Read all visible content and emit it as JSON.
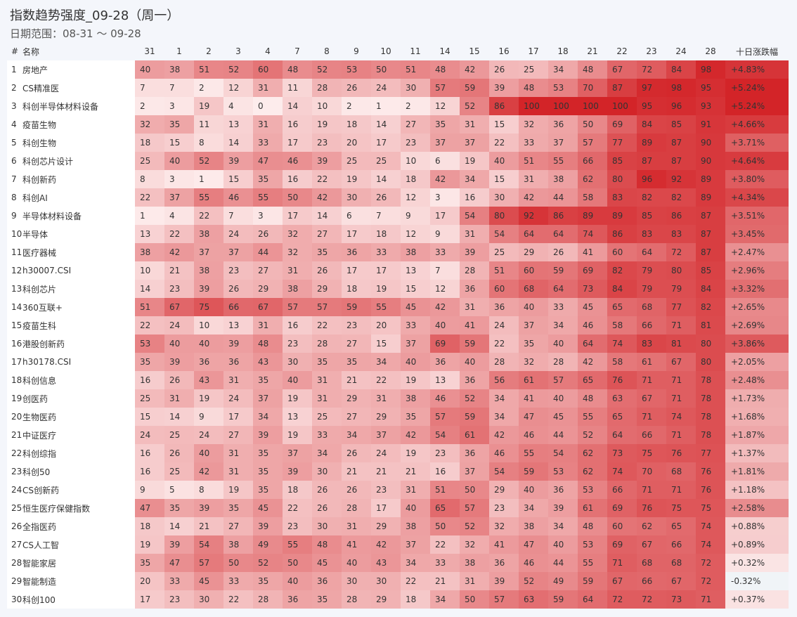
{
  "title": "指数趋势强度_09-28（周一）",
  "subtitle": "日期范围：08-31 ～ 09-28",
  "chart_data": {
    "type": "heatmap",
    "columns": [
      "#",
      "名称",
      "31",
      "1",
      "2",
      "3",
      "4",
      "7",
      "8",
      "9",
      "10",
      "11",
      "14",
      "15",
      "16",
      "17",
      "18",
      "21",
      "22",
      "23",
      "24",
      "28",
      "十日涨跌幅"
    ],
    "rows": [
      {
        "n": "1",
        "name": "房地产",
        "values": [
          40,
          38,
          51,
          52,
          60,
          48,
          52,
          53,
          50,
          51,
          48,
          42,
          26,
          25,
          34,
          48,
          67,
          72,
          84,
          98
        ],
        "chg": "+4.83%",
        "chg_value": 4.83
      },
      {
        "n": "2",
        "name": "CS精准医",
        "values": [
          7,
          7,
          2,
          12,
          31,
          11,
          28,
          26,
          24,
          30,
          57,
          59,
          39,
          48,
          53,
          70,
          87,
          97,
          98,
          95
        ],
        "chg": "+5.24%",
        "chg_value": 5.24
      },
      {
        "n": "3",
        "name": "科创半导体材料设备",
        "values": [
          2,
          3,
          19,
          4,
          0,
          14,
          10,
          2,
          1,
          2,
          12,
          52,
          86,
          100,
          100,
          100,
          100,
          95,
          96,
          93
        ],
        "chg": "+5.24%",
        "chg_value": 5.24
      },
      {
        "n": "4",
        "name": "疫苗生物",
        "values": [
          32,
          35,
          11,
          13,
          31,
          16,
          19,
          18,
          14,
          27,
          35,
          31,
          15,
          32,
          36,
          50,
          69,
          84,
          85,
          91
        ],
        "chg": "+4.66%",
        "chg_value": 4.66
      },
      {
        "n": "5",
        "name": "科创生物",
        "values": [
          18,
          15,
          8,
          14,
          33,
          17,
          23,
          20,
          17,
          23,
          37,
          37,
          22,
          33,
          37,
          57,
          77,
          89,
          87,
          90
        ],
        "chg": "+3.71%",
        "chg_value": 3.71
      },
      {
        "n": "6",
        "name": "科创芯片设计",
        "values": [
          25,
          40,
          52,
          39,
          47,
          46,
          39,
          25,
          25,
          10,
          6,
          19,
          40,
          51,
          55,
          66,
          85,
          87,
          87,
          90
        ],
        "chg": "+4.64%",
        "chg_value": 4.64
      },
      {
        "n": "7",
        "name": "科创新药",
        "values": [
          8,
          3,
          1,
          15,
          35,
          16,
          22,
          19,
          14,
          18,
          42,
          34,
          15,
          31,
          38,
          62,
          80,
          96,
          92,
          89
        ],
        "chg": "+3.80%",
        "chg_value": 3.8
      },
      {
        "n": "8",
        "name": "科创AI",
        "values": [
          22,
          37,
          55,
          46,
          55,
          50,
          42,
          30,
          26,
          12,
          3,
          16,
          30,
          42,
          44,
          58,
          83,
          82,
          82,
          89
        ],
        "chg": "+4.34%",
        "chg_value": 4.34
      },
      {
        "n": "9",
        "name": "半导体材料设备",
        "values": [
          1,
          4,
          22,
          7,
          3,
          17,
          14,
          6,
          7,
          9,
          17,
          54,
          80,
          92,
          86,
          89,
          89,
          85,
          86,
          87
        ],
        "chg": "+3.51%",
        "chg_value": 3.51
      },
      {
        "n": "10",
        "name": "半导体",
        "values": [
          13,
          22,
          38,
          24,
          26,
          32,
          27,
          17,
          18,
          12,
          9,
          31,
          54,
          64,
          64,
          74,
          86,
          83,
          83,
          87
        ],
        "chg": "+3.45%",
        "chg_value": 3.45
      },
      {
        "n": "11",
        "name": "医疗器械",
        "values": [
          38,
          42,
          37,
          37,
          44,
          32,
          35,
          36,
          33,
          38,
          33,
          39,
          25,
          29,
          26,
          41,
          60,
          64,
          72,
          87
        ],
        "chg": "+2.47%",
        "chg_value": 2.47
      },
      {
        "n": "12",
        "name": "h30007.CSI",
        "values": [
          10,
          21,
          38,
          23,
          27,
          31,
          26,
          17,
          17,
          13,
          7,
          28,
          51,
          60,
          59,
          69,
          82,
          79,
          80,
          85
        ],
        "chg": "+2.96%",
        "chg_value": 2.96
      },
      {
        "n": "13",
        "name": "科创芯片",
        "values": [
          14,
          23,
          39,
          26,
          29,
          38,
          29,
          18,
          19,
          15,
          12,
          36,
          60,
          68,
          64,
          73,
          84,
          79,
          79,
          84
        ],
        "chg": "+3.32%",
        "chg_value": 3.32
      },
      {
        "n": "14",
        "name": "360互联+",
        "values": [
          51,
          67,
          75,
          66,
          67,
          57,
          57,
          59,
          55,
          45,
          42,
          31,
          36,
          40,
          33,
          45,
          65,
          68,
          77,
          82
        ],
        "chg": "+2.65%",
        "chg_value": 2.65
      },
      {
        "n": "15",
        "name": "疫苗生科",
        "values": [
          22,
          24,
          10,
          13,
          31,
          16,
          22,
          23,
          20,
          33,
          40,
          41,
          24,
          37,
          34,
          46,
          58,
          66,
          71,
          81
        ],
        "chg": "+2.69%",
        "chg_value": 2.69
      },
      {
        "n": "16",
        "name": "港股创新药",
        "values": [
          53,
          40,
          40,
          39,
          48,
          23,
          28,
          27,
          15,
          37,
          69,
          59,
          22,
          35,
          40,
          64,
          74,
          83,
          81,
          80
        ],
        "chg": "+3.86%",
        "chg_value": 3.86
      },
      {
        "n": "17",
        "name": "h30178.CSI",
        "values": [
          35,
          39,
          36,
          36,
          43,
          30,
          35,
          35,
          34,
          40,
          36,
          40,
          28,
          32,
          28,
          42,
          58,
          61,
          67,
          80
        ],
        "chg": "+2.05%",
        "chg_value": 2.05
      },
      {
        "n": "18",
        "name": "科创信息",
        "values": [
          16,
          26,
          43,
          31,
          35,
          40,
          31,
          21,
          22,
          19,
          13,
          36,
          56,
          61,
          57,
          65,
          76,
          71,
          71,
          78
        ],
        "chg": "+2.48%",
        "chg_value": 2.48
      },
      {
        "n": "19",
        "name": "创医药",
        "values": [
          25,
          31,
          19,
          24,
          37,
          19,
          31,
          29,
          31,
          38,
          46,
          52,
          34,
          41,
          40,
          48,
          63,
          67,
          71,
          78
        ],
        "chg": "+1.73%",
        "chg_value": 1.73
      },
      {
        "n": "20",
        "name": "生物医药",
        "values": [
          15,
          14,
          9,
          17,
          34,
          13,
          25,
          27,
          29,
          35,
          57,
          59,
          34,
          47,
          45,
          55,
          65,
          71,
          74,
          78
        ],
        "chg": "+1.68%",
        "chg_value": 1.68
      },
      {
        "n": "21",
        "name": "中证医疗",
        "values": [
          24,
          25,
          24,
          27,
          39,
          19,
          33,
          34,
          37,
          42,
          54,
          61,
          42,
          46,
          44,
          52,
          64,
          66,
          71,
          78
        ],
        "chg": "+1.87%",
        "chg_value": 1.87
      },
      {
        "n": "22",
        "name": "科创综指",
        "values": [
          16,
          26,
          40,
          31,
          35,
          37,
          34,
          26,
          24,
          19,
          23,
          36,
          46,
          55,
          54,
          62,
          73,
          75,
          76,
          77
        ],
        "chg": "+1.37%",
        "chg_value": 1.37
      },
      {
        "n": "23",
        "name": "科创50",
        "values": [
          16,
          25,
          42,
          31,
          35,
          39,
          30,
          21,
          21,
          21,
          16,
          37,
          54,
          59,
          53,
          62,
          74,
          70,
          68,
          76
        ],
        "chg": "+1.81%",
        "chg_value": 1.81
      },
      {
        "n": "24",
        "name": "CS创新药",
        "values": [
          9,
          5,
          8,
          19,
          35,
          18,
          26,
          26,
          23,
          31,
          51,
          50,
          29,
          40,
          36,
          53,
          66,
          71,
          71,
          76
        ],
        "chg": "+1.18%",
        "chg_value": 1.18
      },
      {
        "n": "25",
        "name": "恒生医疗保健指数",
        "values": [
          47,
          35,
          39,
          35,
          45,
          22,
          26,
          28,
          17,
          40,
          65,
          57,
          23,
          34,
          39,
          61,
          69,
          76,
          75,
          75
        ],
        "chg": "+2.58%",
        "chg_value": 2.58
      },
      {
        "n": "26",
        "name": "全指医药",
        "values": [
          18,
          14,
          21,
          27,
          39,
          23,
          30,
          31,
          29,
          38,
          50,
          52,
          32,
          38,
          34,
          48,
          60,
          62,
          65,
          74
        ],
        "chg": "+0.88%",
        "chg_value": 0.88
      },
      {
        "n": "27",
        "name": "CS人工智",
        "values": [
          19,
          39,
          54,
          38,
          49,
          55,
          48,
          41,
          42,
          37,
          22,
          32,
          41,
          47,
          40,
          53,
          69,
          67,
          66,
          74
        ],
        "chg": "+0.89%",
        "chg_value": 0.89
      },
      {
        "n": "28",
        "name": "智能家居",
        "values": [
          35,
          47,
          57,
          50,
          52,
          50,
          45,
          40,
          43,
          34,
          33,
          38,
          36,
          46,
          44,
          55,
          71,
          68,
          68,
          72
        ],
        "chg": "+0.32%",
        "chg_value": 0.32
      },
      {
        "n": "29",
        "name": "智能制造",
        "values": [
          20,
          33,
          45,
          33,
          35,
          40,
          36,
          30,
          30,
          22,
          21,
          31,
          39,
          52,
          49,
          59,
          67,
          66,
          67,
          72
        ],
        "chg": "-0.32%",
        "chg_value": -0.32
      },
      {
        "n": "30",
        "name": "科创100",
        "values": [
          17,
          23,
          30,
          22,
          28,
          36,
          35,
          28,
          29,
          18,
          34,
          50,
          57,
          63,
          59,
          64,
          72,
          72,
          73,
          71
        ],
        "chg": "+0.37%",
        "chg_value": 0.37
      }
    ]
  }
}
